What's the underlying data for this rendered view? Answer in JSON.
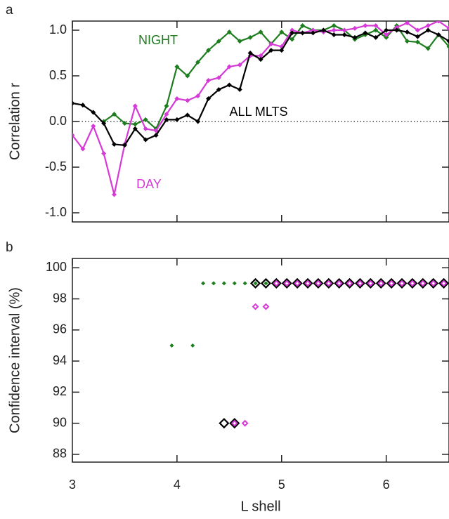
{
  "chart_data": [
    {
      "type": "line",
      "panel_label": "a",
      "ylabel": "Correlation r",
      "x": [
        3.0,
        3.1,
        3.2,
        3.3,
        3.4,
        3.5,
        3.6,
        3.7,
        3.8,
        3.9,
        4.0,
        4.1,
        4.2,
        4.3,
        4.4,
        4.5,
        4.6,
        4.7,
        4.8,
        4.9,
        5.0,
        5.1,
        5.2,
        5.3,
        5.4,
        5.5,
        5.6,
        5.7,
        5.8,
        5.9,
        6.0,
        6.1,
        6.2,
        6.3,
        6.4,
        6.5,
        6.6
      ],
      "xlim": [
        3,
        6.6
      ],
      "xticks": [
        3,
        4,
        5,
        6
      ],
      "ylim": [
        -1.1,
        1.1
      ],
      "yticks": [
        {
          "value": 1,
          "label": "1.0"
        },
        {
          "value": 0.5,
          "label": "0.5"
        },
        {
          "value": 0,
          "label": "0.0"
        },
        {
          "value": -0.5,
          "label": "-0.5"
        },
        {
          "value": -1,
          "label": "-1.0"
        }
      ],
      "reference_line": 0,
      "series": [
        {
          "name": "NIGHT",
          "color": "#1e7d1e",
          "values": [
            null,
            null,
            null,
            0.0,
            0.08,
            -0.02,
            -0.03,
            0.02,
            -0.08,
            0.17,
            0.6,
            0.5,
            0.65,
            0.78,
            0.88,
            0.98,
            0.88,
            0.92,
            0.98,
            0.85,
            0.98,
            0.9,
            1.05,
            1.0,
            1.0,
            1.05,
            1.0,
            0.9,
            0.95,
            1.0,
            0.92,
            1.05,
            0.88,
            0.87,
            0.8,
            0.95,
            0.82
          ]
        },
        {
          "name": "DAY",
          "color": "#d63ad6",
          "values": [
            -0.15,
            -0.3,
            -0.05,
            -0.35,
            -0.8,
            -0.25,
            0.17,
            -0.08,
            -0.1,
            0.08,
            0.25,
            0.23,
            0.28,
            0.45,
            0.48,
            0.6,
            0.62,
            0.72,
            0.72,
            0.85,
            0.82,
            1.0,
            0.97,
            1.0,
            0.98,
            1.0,
            1.0,
            1.02,
            1.05,
            1.05,
            0.95,
            1.03,
            1.08,
            1.0,
            1.05,
            1.1,
            1.02
          ]
        },
        {
          "name": "ALL MLTS",
          "color": "#000000",
          "values": [
            0.2,
            0.18,
            0.1,
            -0.02,
            -0.25,
            -0.26,
            -0.08,
            -0.2,
            -0.15,
            0.02,
            0.02,
            0.07,
            0.0,
            0.25,
            0.35,
            0.4,
            0.35,
            0.75,
            0.68,
            0.78,
            0.78,
            0.97,
            0.97,
            0.97,
            1.0,
            0.95,
            0.95,
            0.92,
            0.97,
            0.92,
            1.0,
            1.0,
            0.98,
            0.93,
            1.0,
            0.95,
            0.88
          ]
        }
      ]
    },
    {
      "type": "scatter",
      "panel_label": "b",
      "ylabel": "Confidence interval (%)",
      "xlabel": "L shell",
      "xlim": [
        3,
        6.6
      ],
      "xticks": [
        3,
        4,
        5,
        6
      ],
      "ylim": [
        87.5,
        100.6
      ],
      "yticks": [
        88,
        90,
        92,
        94,
        96,
        98,
        100
      ],
      "series": [
        {
          "color": "#000000",
          "marker": "open-large",
          "x": [
            4.45,
            4.55,
            4.75,
            4.85,
            4.95,
            5.05,
            5.15,
            5.25,
            5.35,
            5.45,
            5.55,
            5.65,
            5.75,
            5.85,
            5.95,
            6.05,
            6.15,
            6.25,
            6.35,
            6.45,
            6.55
          ],
          "values": [
            90,
            90,
            99,
            99,
            99,
            99,
            99,
            99,
            99,
            99,
            99,
            99,
            99,
            99,
            99,
            99,
            99,
            99,
            99,
            99,
            99
          ]
        },
        {
          "color": "#1e7d1e",
          "marker": "filled",
          "x": [
            3.95,
            4.15,
            4.25,
            4.35,
            4.45,
            4.55,
            4.65,
            4.75,
            4.85
          ],
          "values": [
            95,
            95,
            99,
            99,
            99,
            99,
            99,
            99,
            99
          ]
        },
        {
          "color": "#d63ad6",
          "marker": "open",
          "x": [
            4.55,
            4.65,
            4.75,
            4.85,
            4.95,
            5.05,
            5.15,
            5.25,
            5.35,
            5.45,
            5.55,
            5.65,
            5.75,
            5.85,
            5.95,
            6.05,
            6.15,
            6.25,
            6.35,
            6.45,
            6.55
          ],
          "values": [
            90,
            90,
            97.5,
            97.5,
            99,
            99,
            99,
            99,
            99,
            99,
            99,
            99,
            99,
            99,
            99,
            99,
            99,
            99,
            99,
            99,
            99
          ]
        }
      ]
    }
  ]
}
